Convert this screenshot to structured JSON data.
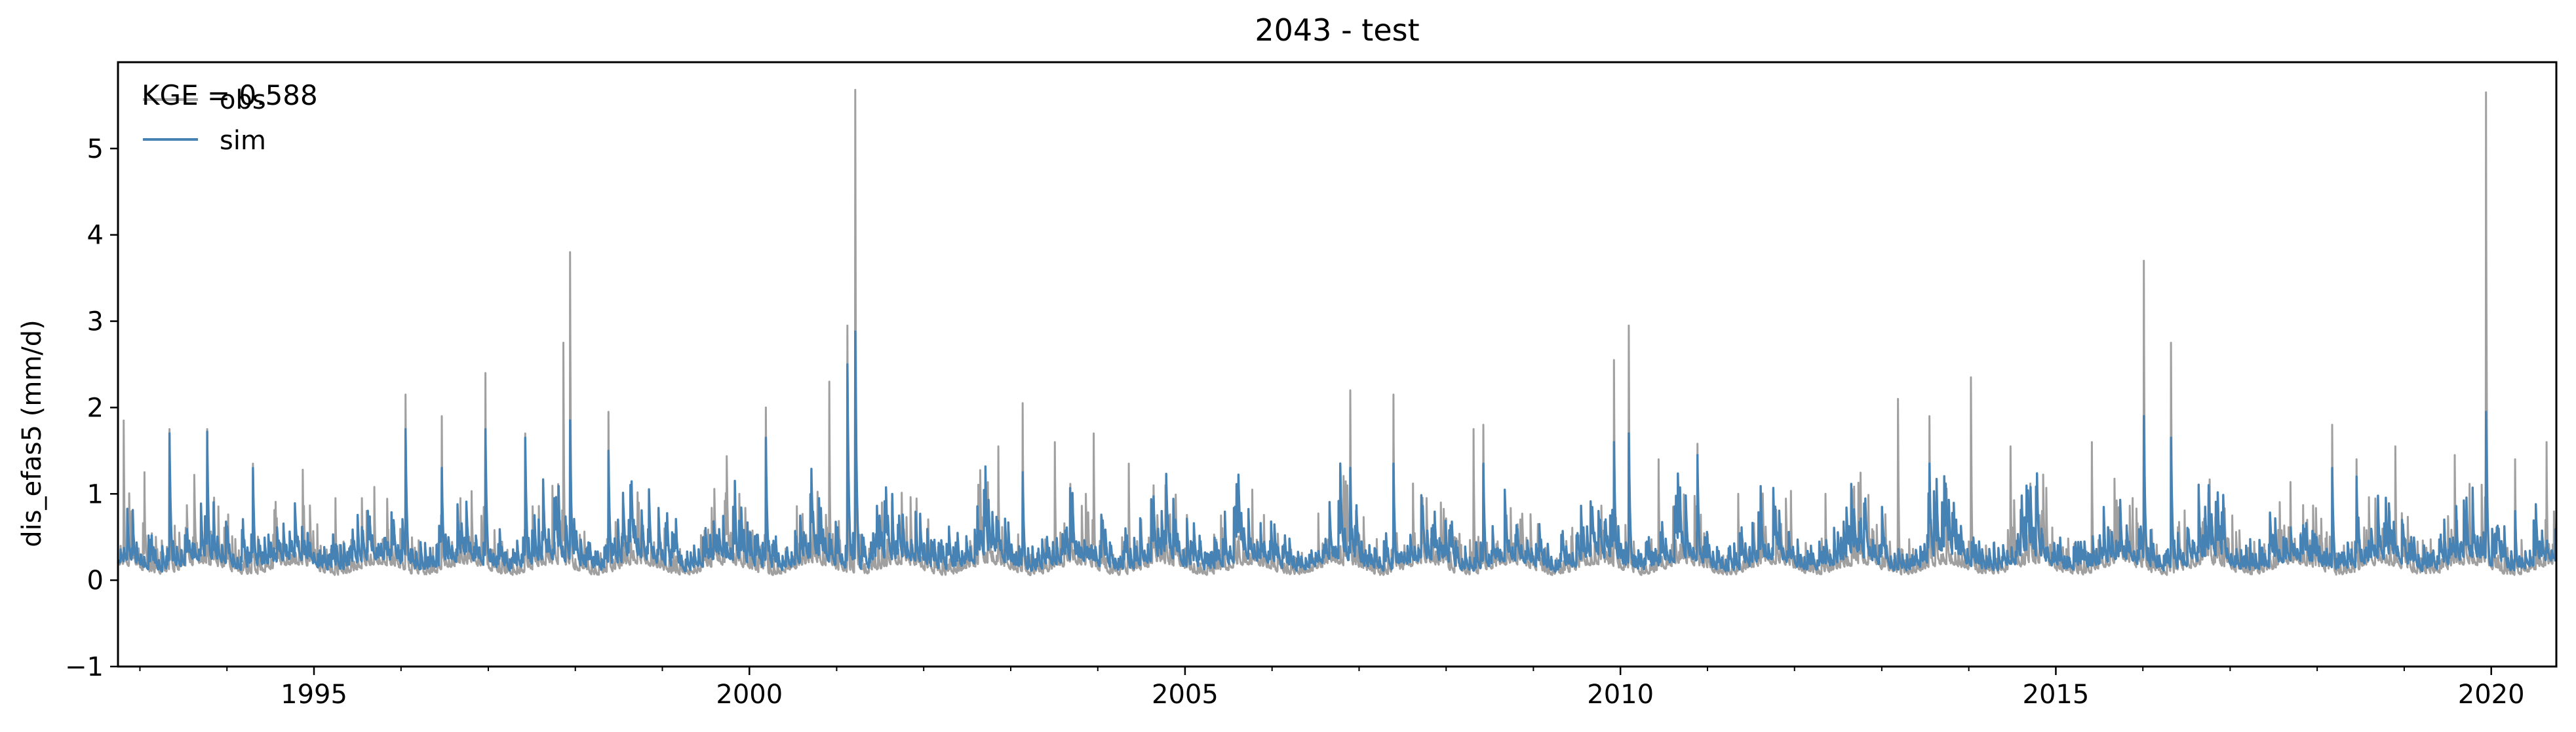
{
  "chart_data": {
    "type": "line",
    "title": "2043 - test",
    "xlabel": "",
    "ylabel": "dis_efas5 (mm/d)",
    "xlim": [
      "1992-10-01",
      "2020-09-30"
    ],
    "ylim": [
      -1,
      6
    ],
    "x_ticks": [
      "1995",
      "2000",
      "2005",
      "2010",
      "2015",
      "2020"
    ],
    "y_ticks": [
      "−1",
      "0",
      "1",
      "2",
      "3",
      "4",
      "5"
    ],
    "grid": false,
    "legend": "top-left",
    "annotation": "KGE = 0.588",
    "series": [
      {
        "name": "obs",
        "color": "#a0a0a0",
        "peaks": [
          [
            "1992-10-25",
            1.85
          ],
          [
            "1993-01-20",
            1.25
          ],
          [
            "1993-05-05",
            1.75
          ],
          [
            "1993-10-10",
            1.75
          ],
          [
            "1994-04-20",
            1.35
          ],
          [
            "1994-11-15",
            1.28
          ],
          [
            "1995-04-01",
            0.95
          ],
          [
            "1996-01-20",
            2.15
          ],
          [
            "1996-06-20",
            1.9
          ],
          [
            "1996-12-20",
            2.4
          ],
          [
            "1997-06-05",
            1.7
          ],
          [
            "1997-11-12",
            2.75
          ],
          [
            "1997-12-10",
            3.8
          ],
          [
            "1998-05-20",
            1.95
          ],
          [
            "1999-01-10",
            0.6
          ],
          [
            "1999-11-20",
            1.0
          ],
          [
            "2000-03-10",
            2.0
          ],
          [
            "2000-12-01",
            2.3
          ],
          [
            "2001-02-15",
            2.95
          ],
          [
            "2001-03-20",
            5.68
          ],
          [
            "2001-07-10",
            0.9
          ],
          [
            "2002-11-10",
            1.55
          ],
          [
            "2003-02-20",
            2.05
          ],
          [
            "2003-07-05",
            1.6
          ],
          [
            "2003-12-15",
            1.7
          ],
          [
            "2004-05-10",
            1.35
          ],
          [
            "2005-06-01",
            0.75
          ],
          [
            "2005-10-10",
            1.05
          ],
          [
            "2006-11-25",
            2.2
          ],
          [
            "2007-05-25",
            2.15
          ],
          [
            "2007-12-10",
            0.9
          ],
          [
            "2008-04-25",
            1.75
          ],
          [
            "2008-06-05",
            1.8
          ],
          [
            "2009-01-20",
            0.65
          ],
          [
            "2009-12-05",
            2.55
          ],
          [
            "2010-02-05",
            2.95
          ],
          [
            "2010-06-10",
            1.4
          ],
          [
            "2010-11-20",
            1.58
          ],
          [
            "2011-05-10",
            1.0
          ],
          [
            "2012-05-10",
            1.0
          ],
          [
            "2013-03-10",
            2.1
          ],
          [
            "2013-07-20",
            1.9
          ],
          [
            "2014-01-10",
            2.35
          ],
          [
            "2014-06-25",
            1.55
          ],
          [
            "2015-06-01",
            1.6
          ],
          [
            "2016-01-05",
            3.7
          ],
          [
            "2016-04-28",
            2.75
          ],
          [
            "2017-01-10",
            0.75
          ],
          [
            "2018-03-05",
            1.8
          ],
          [
            "2018-06-15",
            1.4
          ],
          [
            "2018-11-25",
            1.55
          ],
          [
            "2019-08-01",
            1.45
          ],
          [
            "2019-12-10",
            5.65
          ],
          [
            "2020-04-10",
            1.4
          ],
          [
            "2020-08-20",
            1.6
          ]
        ]
      },
      {
        "name": "sim",
        "color": "#4682b4",
        "peaks": [
          [
            "1993-05-05",
            1.7
          ],
          [
            "1993-10-10",
            1.72
          ],
          [
            "1994-04-20",
            1.3
          ],
          [
            "1996-01-20",
            1.75
          ],
          [
            "1996-06-20",
            1.3
          ],
          [
            "1996-12-20",
            1.75
          ],
          [
            "1997-06-05",
            1.65
          ],
          [
            "1997-12-10",
            1.85
          ],
          [
            "1998-05-20",
            1.5
          ],
          [
            "2000-03-10",
            1.65
          ],
          [
            "2001-02-15",
            2.5
          ],
          [
            "2001-03-20",
            2.88
          ],
          [
            "2003-02-20",
            1.25
          ],
          [
            "2006-11-25",
            1.3
          ],
          [
            "2007-05-25",
            1.35
          ],
          [
            "2008-06-05",
            1.35
          ],
          [
            "2009-12-05",
            1.6
          ],
          [
            "2010-02-05",
            1.7
          ],
          [
            "2010-11-20",
            1.45
          ],
          [
            "2013-07-20",
            1.35
          ],
          [
            "2016-01-05",
            1.9
          ],
          [
            "2016-04-28",
            1.65
          ],
          [
            "2018-03-05",
            1.3
          ],
          [
            "2018-06-15",
            1.2
          ],
          [
            "2019-12-10",
            1.95
          ],
          [
            "2020-04-10",
            0.8
          ]
        ]
      }
    ]
  }
}
